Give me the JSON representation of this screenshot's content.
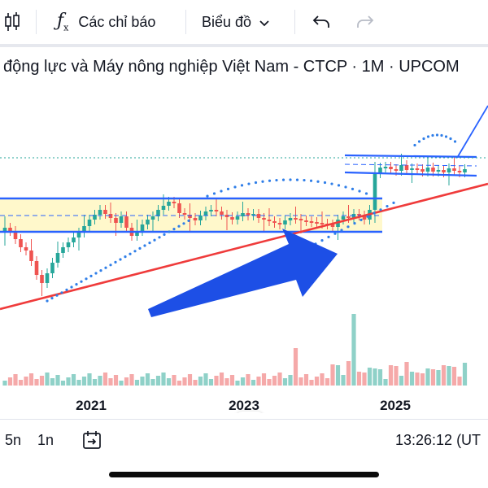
{
  "toolbar": {
    "candle_icon": "candlestick-icon",
    "indicators_label": "Các chỉ báo",
    "chart_type_label": "Biểu đồ",
    "undo_icon": "undo-icon",
    "redo_icon": "redo-icon"
  },
  "title": "động lực và Máy nông nghiệp Việt Nam - CTCP · 1M · UPCOM",
  "chart_data": {
    "type": "candlestick",
    "x_tick_labels": [
      "2021",
      "2023",
      "2025"
    ],
    "colors": {
      "up": "#26a69a",
      "down": "#ef5350",
      "volume_up": "#8fd1c8",
      "volume_down": "#f5a9a9",
      "trendline": "#ef3b3b",
      "channel": "#2962ff",
      "arrow": "#1d4fe6",
      "sar_dots": "#2f7ee8",
      "range_fill": "#fff7c2"
    },
    "grid": false
  },
  "bottom": {
    "range_5y": "5n",
    "range_1y": "1n",
    "goto_icon": "goto-date-icon",
    "clock": "13:26:12 (UT"
  }
}
